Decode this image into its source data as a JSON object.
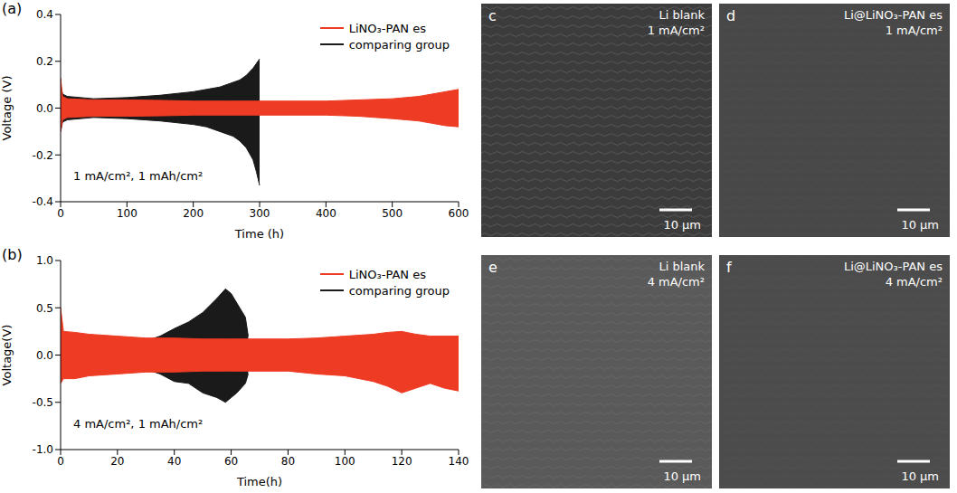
{
  "chart_data": [
    {
      "panel": "(a)",
      "type": "area",
      "x_label": "Time (h)",
      "y_label": "Voltage (V)",
      "annotation": "1 mA/cm², 1 mAh/cm²",
      "legend": "upper right",
      "xlim": [
        0,
        600
      ],
      "xticks": [
        0,
        100,
        200,
        300,
        400,
        500,
        600
      ],
      "ylim": [
        -0.4,
        0.4
      ],
      "yticks": [
        -0.4,
        -0.2,
        {
          "value": 0,
          "label": "0.0"
        },
        0.2,
        0.4
      ],
      "series": [
        {
          "name": "LiNO₃-PAN es",
          "color": "#ee3b24",
          "x": [
            0,
            3,
            10,
            50,
            100,
            150,
            200,
            250,
            300,
            350,
            400,
            450,
            500,
            520,
            540,
            560,
            580,
            600
          ],
          "upper": [
            0.13,
            0.05,
            0.04,
            0.035,
            0.035,
            0.033,
            0.03,
            0.03,
            0.03,
            0.03,
            0.03,
            0.035,
            0.04,
            0.045,
            0.05,
            0.06,
            0.07,
            0.08
          ],
          "lower": [
            -0.1,
            -0.05,
            -0.04,
            -0.035,
            -0.035,
            -0.033,
            -0.03,
            -0.03,
            -0.03,
            -0.03,
            -0.03,
            -0.035,
            -0.045,
            -0.05,
            -0.055,
            -0.065,
            -0.075,
            -0.08
          ]
        },
        {
          "name": "comparing group",
          "color": "#1a1a1a",
          "x": [
            0,
            3,
            10,
            50,
            100,
            150,
            200,
            220,
            240,
            260,
            270,
            280,
            290,
            295,
            300
          ],
          "upper": [
            0.1,
            0.06,
            0.05,
            0.04,
            0.045,
            0.055,
            0.07,
            0.08,
            0.09,
            0.11,
            0.12,
            0.14,
            0.17,
            0.19,
            0.21
          ],
          "lower": [
            -0.1,
            -0.06,
            -0.05,
            -0.04,
            -0.045,
            -0.055,
            -0.07,
            -0.08,
            -0.1,
            -0.12,
            -0.14,
            -0.17,
            -0.22,
            -0.27,
            -0.33
          ]
        }
      ]
    },
    {
      "panel": "(b)",
      "type": "area",
      "x_label": "Time(h)",
      "y_label": "Voltage(V)",
      "annotation": "4 mA/cm², 1 mAh/cm²",
      "legend": "upper right",
      "xlim": [
        0,
        140
      ],
      "xticks": [
        0,
        20,
        40,
        60,
        80,
        100,
        120,
        140
      ],
      "ylim": [
        -1,
        1
      ],
      "yticks": [
        {
          "value": -1,
          "label": "-1.0"
        },
        -0.5,
        {
          "value": 0,
          "label": "0.0"
        },
        0.5,
        {
          "value": 1,
          "label": "1.0"
        }
      ],
      "series": [
        {
          "name": "LiNO₃-PAN es",
          "color": "#ee3b24",
          "x": [
            0,
            1,
            5,
            10,
            20,
            30,
            40,
            50,
            60,
            70,
            80,
            90,
            100,
            110,
            115,
            120,
            125,
            130,
            135,
            140
          ],
          "upper": [
            0.5,
            0.25,
            0.24,
            0.22,
            0.2,
            0.18,
            0.18,
            0.17,
            0.17,
            0.17,
            0.17,
            0.18,
            0.2,
            0.22,
            0.24,
            0.25,
            0.22,
            0.2,
            0.2,
            0.2
          ],
          "lower": [
            -0.3,
            -0.25,
            -0.25,
            -0.22,
            -0.2,
            -0.18,
            -0.18,
            -0.17,
            -0.17,
            -0.17,
            -0.17,
            -0.2,
            -0.22,
            -0.28,
            -0.33,
            -0.4,
            -0.35,
            -0.3,
            -0.35,
            -0.38
          ]
        },
        {
          "name": "comparing group",
          "color": "#1a1a1a",
          "x": [
            0,
            1,
            5,
            10,
            20,
            30,
            35,
            40,
            45,
            50,
            55,
            58,
            60,
            62,
            65,
            66
          ],
          "upper": [
            0.2,
            0.15,
            0.12,
            0.1,
            0.1,
            0.15,
            0.2,
            0.28,
            0.35,
            0.45,
            0.6,
            0.7,
            0.65,
            0.55,
            0.4,
            0.2
          ],
          "lower": [
            -0.2,
            -0.15,
            -0.12,
            -0.1,
            -0.1,
            -0.15,
            -0.2,
            -0.28,
            -0.3,
            -0.4,
            -0.45,
            -0.5,
            -0.45,
            -0.4,
            -0.3,
            -0.2
          ]
        }
      ]
    }
  ],
  "images": [
    {
      "panel": "c",
      "label": "Li blank",
      "condition": "1 mA/cm²",
      "scale_bar": "10 μm"
    },
    {
      "panel": "d",
      "label": "Li@LiNO₃-PAN es",
      "condition": "1 mA/cm²",
      "scale_bar": "10 μm"
    },
    {
      "panel": "e",
      "label": "Li blank",
      "condition": "4 mA/cm²",
      "scale_bar": "10 μm"
    },
    {
      "panel": "f",
      "label": "Li@LiNO₃-PAN es",
      "condition": "4 mA/cm²",
      "scale_bar": "10 μm"
    }
  ]
}
